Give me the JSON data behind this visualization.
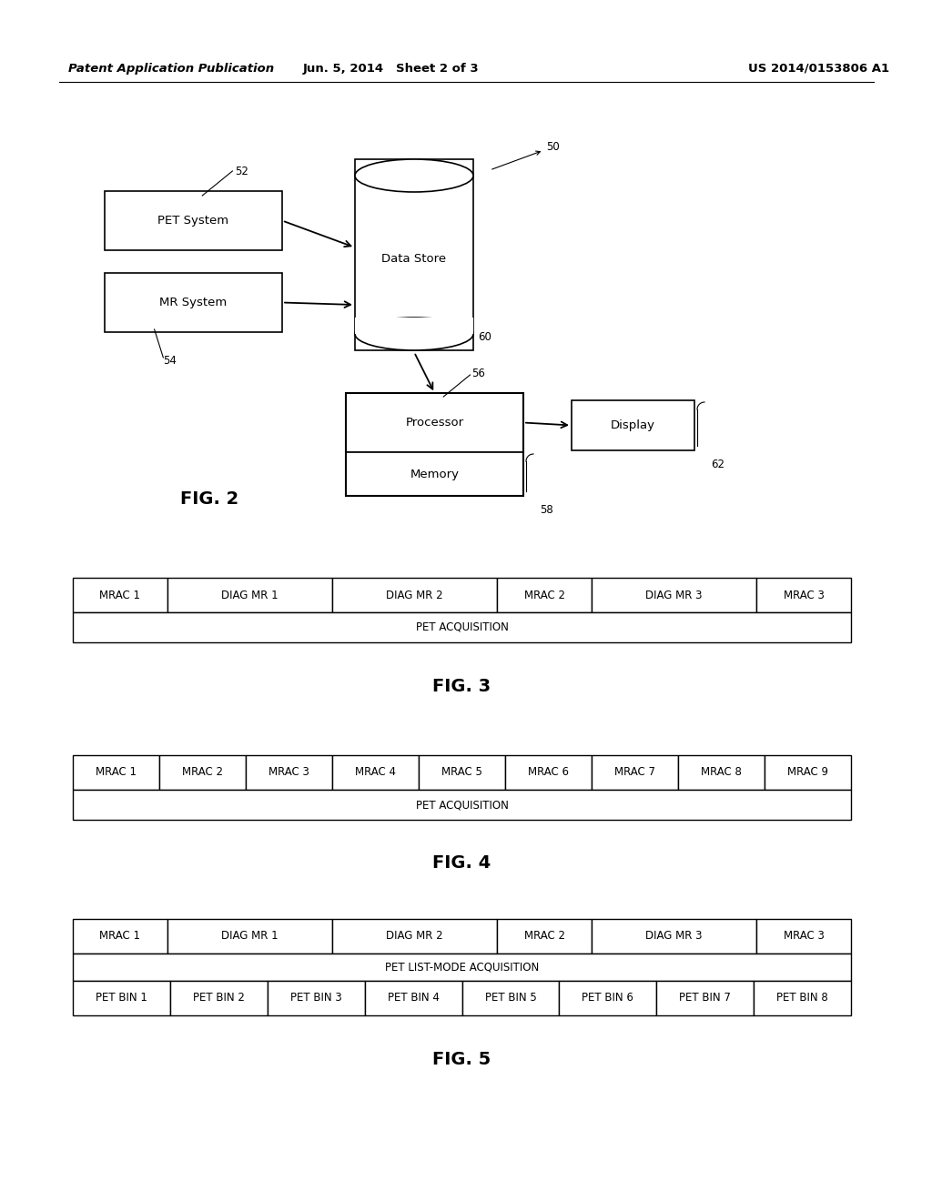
{
  "bg_color": "#ffffff",
  "header_left": "Patent Application Publication",
  "header_mid": "Jun. 5, 2014   Sheet 2 of 3",
  "header_right": "US 2014/0153806 A1",
  "fig2_label": "FIG. 2",
  "fig3_label": "FIG. 3",
  "fig4_label": "FIG. 4",
  "fig5_label": "FIG. 5",
  "lbl_50": "50",
  "lbl_52": "52",
  "lbl_54": "54",
  "lbl_56": "56",
  "lbl_58": "58",
  "lbl_60": "60",
  "lbl_62": "62"
}
